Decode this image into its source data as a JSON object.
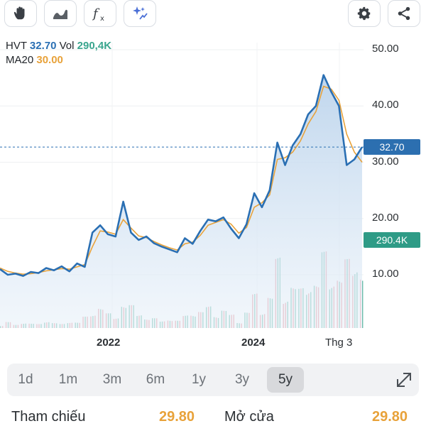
{
  "toolbar": {
    "left_icons": [
      "hand-icon",
      "line-chart-icon",
      "function-icon",
      "sparkle-icon"
    ],
    "right_icons": [
      "gear-icon",
      "share-icon"
    ]
  },
  "legend": {
    "symbol": "HVT",
    "price": "32.70",
    "vol_label": "Vol",
    "vol_value": "290,4K",
    "ma_label": "MA20",
    "ma_value": "30.00"
  },
  "colors": {
    "price_line": "#2a6fb3",
    "ma_line": "#e8a23a",
    "volume_up": "#3aa58e",
    "volume_down": "#e0707a",
    "area_fill": "#cfe0f1"
  },
  "chart_data": {
    "type": "line",
    "y_tick_labels": [
      "50.00",
      "40.00",
      "30.00",
      "20.00",
      "10.00"
    ],
    "x_tick_labels": [
      "2022",
      "2024",
      "Thg 3"
    ],
    "ylim": [
      0,
      52
    ],
    "current_price_label": "32.70",
    "current_volume_label": "290.4K",
    "series": [
      {
        "name": "HVT",
        "values": [
          11.0,
          10.0,
          10.2,
          9.8,
          10.5,
          10.3,
          11.2,
          10.8,
          11.5,
          10.6,
          12.0,
          11.4,
          17.5,
          18.8,
          17.2,
          16.8,
          23.0,
          17.5,
          16.2,
          16.8,
          15.6,
          15.0,
          14.5,
          14.0,
          16.5,
          15.5,
          17.8,
          19.8,
          19.5,
          20.2,
          18.2,
          16.5,
          19.0,
          24.5,
          22.0,
          25.0,
          33.5,
          29.5,
          33.0,
          35.0,
          38.5,
          40.0,
          45.5,
          42.5,
          40.0,
          29.5,
          30.5,
          32.7
        ]
      },
      {
        "name": "MA20",
        "values": [
          11.2,
          10.6,
          10.3,
          10.1,
          10.2,
          10.4,
          10.7,
          10.9,
          11.1,
          11.0,
          11.4,
          11.8,
          15.0,
          17.8,
          17.6,
          17.2,
          19.8,
          18.3,
          16.9,
          16.6,
          15.9,
          15.3,
          14.8,
          14.4,
          15.5,
          15.8,
          17.0,
          18.8,
          19.3,
          19.8,
          19.0,
          17.4,
          18.4,
          22.0,
          22.8,
          24.2,
          30.5,
          30.8,
          31.8,
          33.8,
          36.8,
          39.0,
          43.5,
          43.0,
          41.0,
          35.0,
          31.8,
          30.0
        ]
      }
    ],
    "volume_relative": [
      0.05,
      0.08,
      0.04,
      0.1,
      0.06,
      0.05,
      0.12,
      0.07,
      0.05,
      0.1,
      0.08,
      0.14,
      0.22,
      0.3,
      0.18,
      0.16,
      0.35,
      0.28,
      0.2,
      0.15,
      0.12,
      0.1,
      0.14,
      0.09,
      0.18,
      0.25,
      0.2,
      0.3,
      0.24,
      0.22,
      0.18,
      0.12,
      0.2,
      0.45,
      0.35,
      0.4,
      0.9,
      0.6,
      0.55,
      0.5,
      0.75,
      0.6,
      0.95,
      0.8,
      0.7,
      0.85,
      1.0,
      0.75
    ]
  },
  "ranges": {
    "items": [
      "1d",
      "1m",
      "3m",
      "6m",
      "1y",
      "3y",
      "5y"
    ],
    "active": "5y"
  },
  "stats": {
    "ref_label": "Tham chiếu",
    "ref_value": "29.80",
    "open_label": "Mở cửa",
    "open_value": "29.80"
  }
}
